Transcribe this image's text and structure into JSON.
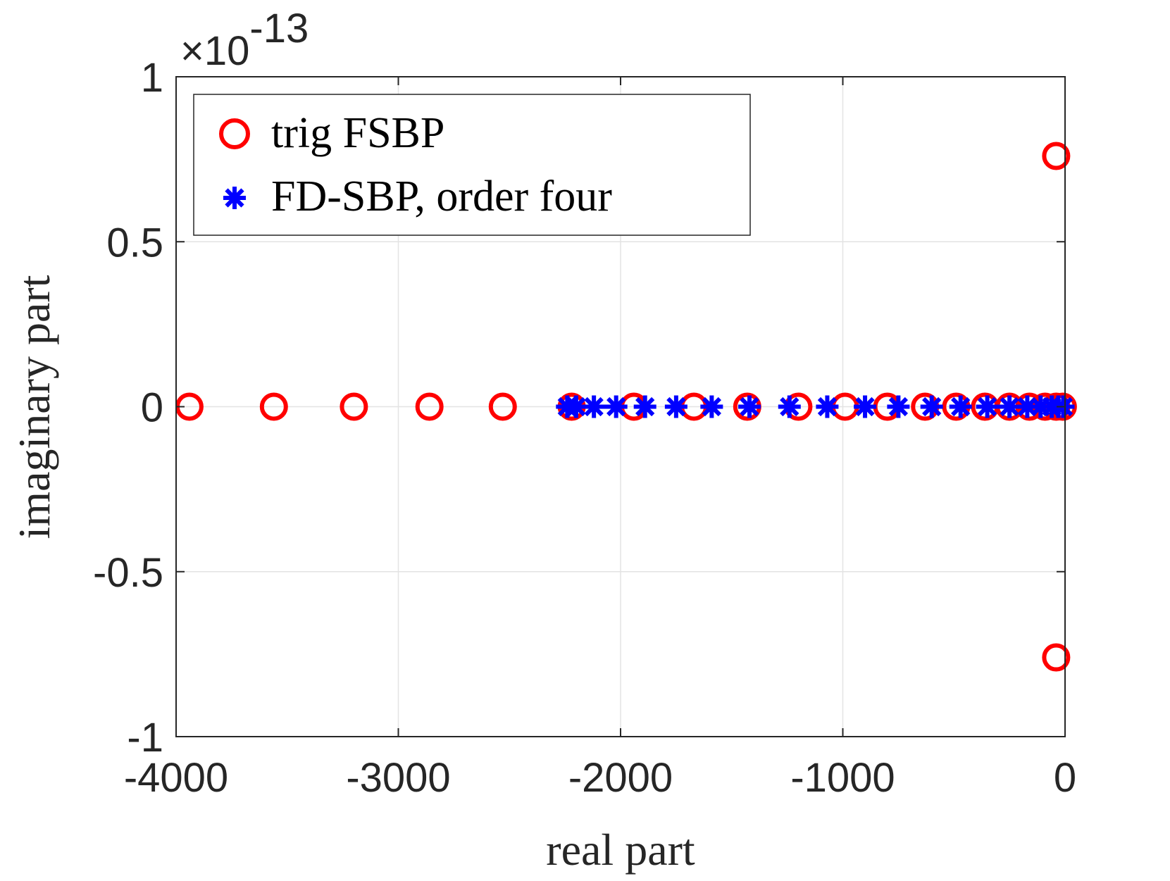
{
  "chart_data": {
    "type": "scatter",
    "xlabel": "real part",
    "ylabel": "imaginary part",
    "xlim": [
      -4000,
      0
    ],
    "ylim": [
      -1,
      1
    ],
    "y_scale_factor_label": "×10",
    "y_scale_exponent": "-13",
    "x_ticks": [
      -4000,
      -3000,
      -2000,
      -1000,
      0
    ],
    "x_tick_labels": [
      "-4000",
      "-3000",
      "-2000",
      "-1000",
      "0"
    ],
    "y_ticks": [
      -1,
      -0.5,
      0,
      0.5,
      1
    ],
    "y_tick_labels": [
      "-1",
      "-0.5",
      "0",
      "0.5",
      "1"
    ],
    "grid": true,
    "legend_position": "top-left",
    "series": [
      {
        "name": "trig FSBP",
        "marker": "circle",
        "color": "#ff0000",
        "points": [
          [
            -3940,
            0
          ],
          [
            -3560,
            0
          ],
          [
            -3200,
            0
          ],
          [
            -2860,
            0
          ],
          [
            -2530,
            0
          ],
          [
            -2220,
            0
          ],
          [
            -1940,
            0
          ],
          [
            -1670,
            0
          ],
          [
            -1430,
            0
          ],
          [
            -1200,
            0
          ],
          [
            -990,
            0
          ],
          [
            -800,
            0
          ],
          [
            -630,
            0
          ],
          [
            -490,
            0
          ],
          [
            -360,
            0
          ],
          [
            -250,
            0
          ],
          [
            -160,
            0
          ],
          [
            -90,
            0
          ],
          [
            -40,
            0
          ],
          [
            -10,
            0
          ],
          [
            -40,
            0.76
          ],
          [
            -40,
            -0.76
          ]
        ]
      },
      {
        "name": "FD-SBP, order four",
        "marker": "asterisk",
        "color": "#0000ff",
        "points": [
          [
            -2240,
            0
          ],
          [
            -2200,
            0
          ],
          [
            -2120,
            0
          ],
          [
            -2020,
            0
          ],
          [
            -1890,
            0
          ],
          [
            -1750,
            0
          ],
          [
            -1590,
            0
          ],
          [
            -1420,
            0
          ],
          [
            -1240,
            0
          ],
          [
            -1070,
            0
          ],
          [
            -900,
            0
          ],
          [
            -750,
            0
          ],
          [
            -600,
            0
          ],
          [
            -470,
            0
          ],
          [
            -350,
            0
          ],
          [
            -250,
            0
          ],
          [
            -170,
            0
          ],
          [
            -110,
            0
          ],
          [
            -60,
            0
          ],
          [
            -30,
            0
          ],
          [
            -8,
            0
          ]
        ]
      }
    ]
  }
}
